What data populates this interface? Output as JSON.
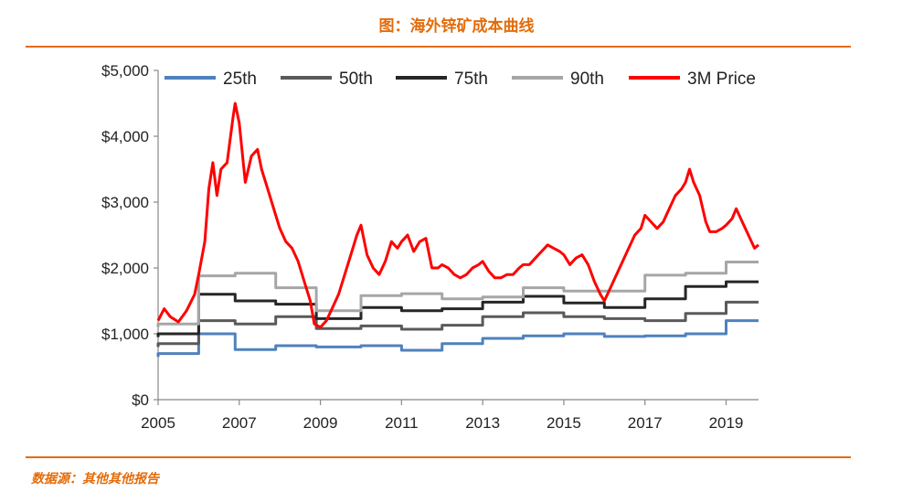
{
  "header": {
    "title": "图：海外锌矿成本曲线"
  },
  "footer": {
    "source": "数据源：其他其他报告"
  },
  "chart_data": {
    "type": "line",
    "xlim": [
      2005,
      2019.8
    ],
    "ylim": [
      0,
      5000
    ],
    "x_ticks": [
      2005,
      2007,
      2009,
      2011,
      2013,
      2015,
      2017,
      2019
    ],
    "y_ticks": [
      0,
      1000,
      2000,
      3000,
      4000,
      5000
    ],
    "y_tick_labels": [
      "$0",
      "$1,000",
      "$2,000",
      "$3,000",
      "$4,000",
      "$5,000"
    ],
    "legend_position": "top",
    "grid": false,
    "series": [
      {
        "name": "25th",
        "color": "#4f81bd",
        "step": true,
        "points": [
          [
            2005.0,
            650
          ],
          [
            2005.0,
            700
          ],
          [
            2006.0,
            700
          ],
          [
            2006.0,
            1000
          ],
          [
            2006.9,
            1000
          ],
          [
            2006.9,
            760
          ],
          [
            2007.9,
            760
          ],
          [
            2007.9,
            820
          ],
          [
            2008.9,
            820
          ],
          [
            2008.9,
            800
          ],
          [
            2010.0,
            800
          ],
          [
            2010.0,
            820
          ],
          [
            2011.0,
            820
          ],
          [
            2011.0,
            750
          ],
          [
            2012.0,
            750
          ],
          [
            2012.0,
            850
          ],
          [
            2013.0,
            850
          ],
          [
            2013.0,
            930
          ],
          [
            2014.0,
            930
          ],
          [
            2014.0,
            970
          ],
          [
            2015.0,
            970
          ],
          [
            2015.0,
            1000
          ],
          [
            2016.0,
            1000
          ],
          [
            2016.0,
            960
          ],
          [
            2017.0,
            960
          ],
          [
            2017.0,
            970
          ],
          [
            2018.0,
            970
          ],
          [
            2018.0,
            1000
          ],
          [
            2019.0,
            1000
          ],
          [
            2019.0,
            1200
          ],
          [
            2019.8,
            1200
          ]
        ]
      },
      {
        "name": "50th",
        "color": "#5a5a5a",
        "step": true,
        "points": [
          [
            2005.0,
            800
          ],
          [
            2005.0,
            850
          ],
          [
            2006.0,
            850
          ],
          [
            2006.0,
            1200
          ],
          [
            2006.9,
            1200
          ],
          [
            2006.9,
            1150
          ],
          [
            2007.9,
            1150
          ],
          [
            2007.9,
            1260
          ],
          [
            2008.9,
            1260
          ],
          [
            2008.9,
            1080
          ],
          [
            2010.0,
            1080
          ],
          [
            2010.0,
            1120
          ],
          [
            2011.0,
            1120
          ],
          [
            2011.0,
            1070
          ],
          [
            2012.0,
            1070
          ],
          [
            2012.0,
            1130
          ],
          [
            2013.0,
            1130
          ],
          [
            2013.0,
            1260
          ],
          [
            2014.0,
            1260
          ],
          [
            2014.0,
            1320
          ],
          [
            2015.0,
            1320
          ],
          [
            2015.0,
            1260
          ],
          [
            2016.0,
            1260
          ],
          [
            2016.0,
            1230
          ],
          [
            2017.0,
            1230
          ],
          [
            2017.0,
            1200
          ],
          [
            2018.0,
            1200
          ],
          [
            2018.0,
            1310
          ],
          [
            2019.0,
            1310
          ],
          [
            2019.0,
            1480
          ],
          [
            2019.8,
            1480
          ]
        ]
      },
      {
        "name": "75th",
        "color": "#262626",
        "step": true,
        "points": [
          [
            2005.0,
            950
          ],
          [
            2005.0,
            1000
          ],
          [
            2006.0,
            1000
          ],
          [
            2006.0,
            1600
          ],
          [
            2006.9,
            1600
          ],
          [
            2006.9,
            1500
          ],
          [
            2007.9,
            1500
          ],
          [
            2007.9,
            1450
          ],
          [
            2008.9,
            1450
          ],
          [
            2008.9,
            1230
          ],
          [
            2010.0,
            1230
          ],
          [
            2010.0,
            1400
          ],
          [
            2011.0,
            1400
          ],
          [
            2011.0,
            1350
          ],
          [
            2012.0,
            1350
          ],
          [
            2012.0,
            1380
          ],
          [
            2013.0,
            1380
          ],
          [
            2013.0,
            1480
          ],
          [
            2014.0,
            1480
          ],
          [
            2014.0,
            1570
          ],
          [
            2015.0,
            1570
          ],
          [
            2015.0,
            1470
          ],
          [
            2016.0,
            1470
          ],
          [
            2016.0,
            1400
          ],
          [
            2017.0,
            1400
          ],
          [
            2017.0,
            1530
          ],
          [
            2018.0,
            1530
          ],
          [
            2018.0,
            1720
          ],
          [
            2019.0,
            1720
          ],
          [
            2019.0,
            1790
          ],
          [
            2019.8,
            1790
          ]
        ]
      },
      {
        "name": "90th",
        "color": "#a6a6a6",
        "step": true,
        "points": [
          [
            2005.0,
            1100
          ],
          [
            2005.0,
            1150
          ],
          [
            2006.0,
            1150
          ],
          [
            2006.0,
            1880
          ],
          [
            2006.9,
            1880
          ],
          [
            2006.9,
            1920
          ],
          [
            2007.9,
            1920
          ],
          [
            2007.9,
            1700
          ],
          [
            2008.9,
            1700
          ],
          [
            2008.9,
            1350
          ],
          [
            2010.0,
            1350
          ],
          [
            2010.0,
            1580
          ],
          [
            2011.0,
            1580
          ],
          [
            2011.0,
            1610
          ],
          [
            2012.0,
            1610
          ],
          [
            2012.0,
            1530
          ],
          [
            2013.0,
            1530
          ],
          [
            2013.0,
            1560
          ],
          [
            2014.0,
            1560
          ],
          [
            2014.0,
            1700
          ],
          [
            2015.0,
            1700
          ],
          [
            2015.0,
            1650
          ],
          [
            2016.0,
            1650
          ],
          [
            2016.0,
            1650
          ],
          [
            2017.0,
            1650
          ],
          [
            2017.0,
            1890
          ],
          [
            2018.0,
            1890
          ],
          [
            2018.0,
            1920
          ],
          [
            2019.0,
            1920
          ],
          [
            2019.0,
            2090
          ],
          [
            2019.8,
            2090
          ]
        ]
      },
      {
        "name": "3M Price",
        "color": "#ff0000",
        "step": false,
        "points": [
          [
            2005.0,
            1200
          ],
          [
            2005.15,
            1380
          ],
          [
            2005.3,
            1260
          ],
          [
            2005.5,
            1180
          ],
          [
            2005.7,
            1350
          ],
          [
            2005.9,
            1600
          ],
          [
            2006.0,
            1900
          ],
          [
            2006.15,
            2400
          ],
          [
            2006.25,
            3200
          ],
          [
            2006.35,
            3600
          ],
          [
            2006.45,
            3100
          ],
          [
            2006.55,
            3500
          ],
          [
            2006.7,
            3600
          ],
          [
            2006.85,
            4300
          ],
          [
            2006.9,
            4500
          ],
          [
            2007.0,
            4200
          ],
          [
            2007.15,
            3300
          ],
          [
            2007.3,
            3700
          ],
          [
            2007.45,
            3800
          ],
          [
            2007.55,
            3500
          ],
          [
            2007.7,
            3200
          ],
          [
            2007.85,
            2900
          ],
          [
            2008.0,
            2600
          ],
          [
            2008.15,
            2400
          ],
          [
            2008.3,
            2300
          ],
          [
            2008.45,
            2100
          ],
          [
            2008.6,
            1800
          ],
          [
            2008.75,
            1500
          ],
          [
            2008.85,
            1150
          ],
          [
            2009.0,
            1100
          ],
          [
            2009.15,
            1200
          ],
          [
            2009.3,
            1400
          ],
          [
            2009.45,
            1600
          ],
          [
            2009.6,
            1900
          ],
          [
            2009.75,
            2200
          ],
          [
            2009.9,
            2500
          ],
          [
            2010.0,
            2650
          ],
          [
            2010.15,
            2200
          ],
          [
            2010.3,
            2000
          ],
          [
            2010.45,
            1900
          ],
          [
            2010.6,
            2100
          ],
          [
            2010.75,
            2400
          ],
          [
            2010.9,
            2300
          ],
          [
            2011.0,
            2400
          ],
          [
            2011.15,
            2500
          ],
          [
            2011.3,
            2250
          ],
          [
            2011.45,
            2400
          ],
          [
            2011.6,
            2450
          ],
          [
            2011.75,
            2000
          ],
          [
            2011.9,
            2000
          ],
          [
            2012.0,
            2050
          ],
          [
            2012.15,
            2000
          ],
          [
            2012.3,
            1900
          ],
          [
            2012.45,
            1850
          ],
          [
            2012.6,
            1900
          ],
          [
            2012.75,
            2000
          ],
          [
            2012.9,
            2050
          ],
          [
            2013.0,
            2100
          ],
          [
            2013.15,
            1950
          ],
          [
            2013.3,
            1850
          ],
          [
            2013.45,
            1850
          ],
          [
            2013.6,
            1900
          ],
          [
            2013.75,
            1900
          ],
          [
            2013.9,
            2000
          ],
          [
            2014.0,
            2050
          ],
          [
            2014.15,
            2050
          ],
          [
            2014.3,
            2150
          ],
          [
            2014.45,
            2250
          ],
          [
            2014.6,
            2350
          ],
          [
            2014.75,
            2300
          ],
          [
            2014.9,
            2250
          ],
          [
            2015.0,
            2200
          ],
          [
            2015.15,
            2050
          ],
          [
            2015.3,
            2150
          ],
          [
            2015.45,
            2200
          ],
          [
            2015.6,
            2050
          ],
          [
            2015.75,
            1800
          ],
          [
            2015.9,
            1600
          ],
          [
            2016.0,
            1500
          ],
          [
            2016.15,
            1700
          ],
          [
            2016.3,
            1900
          ],
          [
            2016.45,
            2100
          ],
          [
            2016.6,
            2300
          ],
          [
            2016.75,
            2500
          ],
          [
            2016.9,
            2600
          ],
          [
            2017.0,
            2800
          ],
          [
            2017.15,
            2700
          ],
          [
            2017.3,
            2600
          ],
          [
            2017.45,
            2700
          ],
          [
            2017.6,
            2900
          ],
          [
            2017.75,
            3100
          ],
          [
            2017.9,
            3200
          ],
          [
            2018.0,
            3300
          ],
          [
            2018.1,
            3500
          ],
          [
            2018.2,
            3300
          ],
          [
            2018.35,
            3100
          ],
          [
            2018.5,
            2700
          ],
          [
            2018.6,
            2550
          ],
          [
            2018.75,
            2550
          ],
          [
            2018.9,
            2600
          ],
          [
            2019.0,
            2650
          ],
          [
            2019.15,
            2750
          ],
          [
            2019.25,
            2900
          ],
          [
            2019.4,
            2700
          ],
          [
            2019.55,
            2500
          ],
          [
            2019.7,
            2300
          ],
          [
            2019.8,
            2350
          ]
        ]
      }
    ]
  }
}
